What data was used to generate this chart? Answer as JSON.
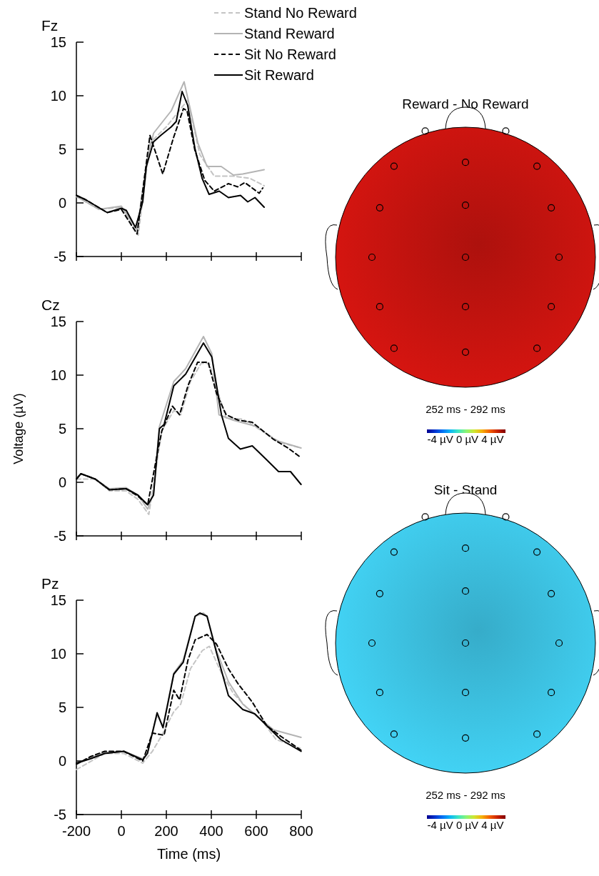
{
  "chart_data": [
    {
      "type": "line",
      "title": "Fz",
      "xlim": [
        -200,
        800
      ],
      "xticks": [
        -200,
        0,
        200,
        400,
        600,
        800
      ],
      "ylim": [
        -5,
        15
      ],
      "yticks": [
        -5,
        0,
        5,
        10,
        15
      ],
      "tick_labels": "y",
      "legend": "top right",
      "grid": false,
      "marker": "none",
      "series": [
        {
          "name": "Stand No Reward",
          "color": "#c4c4c4",
          "line_style": "dashed",
          "x": [
            -200,
            -100,
            0,
            75,
            127,
            200,
            295,
            349,
            413,
            498,
            571,
            635
          ],
          "values": [
            0.6,
            -0.6,
            -0.4,
            -3.0,
            5.6,
            7.1,
            9.6,
            4.5,
            2.5,
            2.5,
            2.3,
            1.6
          ]
        },
        {
          "name": "Stand Reward",
          "color": "#b4b4b4",
          "line_style": "solid",
          "x": [
            -200,
            -100,
            0,
            70,
            111,
            143,
            222,
            279,
            340,
            381,
            444,
            498,
            540,
            635
          ],
          "values": [
            0.6,
            -0.6,
            -0.3,
            -2.5,
            3.6,
            6.5,
            8.6,
            11.3,
            5.6,
            3.4,
            3.4,
            2.6,
            2.7,
            3.1
          ]
        },
        {
          "name": "Sit No Reward",
          "color": "#000000",
          "line_style": "dashed",
          "x": [
            -200,
            -159,
            -63,
            0,
            70,
            127,
            184,
            232,
            276,
            292,
            327,
            371,
            413,
            476,
            517,
            549,
            613,
            629
          ],
          "values": [
            0.7,
            0.3,
            -0.9,
            -0.6,
            -2.9,
            6.3,
            2.7,
            6.1,
            8.8,
            8.6,
            4.9,
            2.1,
            1.1,
            1.8,
            1.5,
            1.9,
            0.9,
            1.4
          ]
        },
        {
          "name": "Sit Reward",
          "color": "#000000",
          "line_style": "solid",
          "x": [
            -200,
            -159,
            -63,
            0,
            22,
            63,
            95,
            111,
            143,
            175,
            222,
            244,
            270,
            295,
            327,
            359,
            390,
            435,
            476,
            530,
            562,
            594,
            635
          ],
          "values": [
            0.7,
            0.3,
            -0.9,
            -0.5,
            -0.7,
            -2.3,
            0.1,
            3.4,
            5.7,
            6.3,
            7.1,
            7.6,
            10.4,
            9.1,
            5.1,
            2.3,
            0.8,
            1.1,
            0.5,
            0.7,
            0.1,
            0.5,
            -0.4
          ]
        }
      ]
    },
    {
      "type": "line",
      "title": "Cz",
      "ylabel": "Voltage (µV)",
      "xlim": [
        -200,
        800
      ],
      "xticks": [
        -200,
        0,
        200,
        400,
        600,
        800
      ],
      "ylim": [
        -5,
        15
      ],
      "yticks": [
        -5,
        0,
        5,
        10,
        15
      ],
      "tick_labels": "y",
      "legend": false,
      "grid": false,
      "marker": "none",
      "series": [
        {
          "color": "#c4c4c4",
          "line_style": "dashed",
          "x": [
            -200,
            -116,
            -53,
            21,
            74,
            122,
            180,
            233,
            264,
            307,
            355,
            391,
            423,
            466,
            540,
            624,
            709,
            799
          ],
          "values": [
            0.3,
            0.3,
            -0.8,
            -0.8,
            -1.6,
            -3.0,
            4.8,
            6.7,
            6.3,
            9.4,
            11.1,
            11.1,
            8.8,
            6.0,
            5.9,
            4.8,
            3.7,
            3.2
          ]
        },
        {
          "color": "#b4b4b4",
          "line_style": "solid",
          "x": [
            -200,
            -180,
            -116,
            -53,
            21,
            74,
            117,
            143,
            169,
            233,
            286,
            365,
            402,
            434,
            497,
            603,
            688,
            799
          ],
          "values": [
            0.3,
            0.8,
            0.3,
            -0.6,
            -0.5,
            -1.2,
            -2.5,
            -1.0,
            5.2,
            9.4,
            10.6,
            13.6,
            12.0,
            6.3,
            5.8,
            5.2,
            3.9,
            3.2
          ]
        },
        {
          "color": "#000000",
          "line_style": "dashed",
          "x": [
            -200,
            -180,
            -116,
            -53,
            21,
            74,
            117,
            159,
            180,
            227,
            259,
            296,
            339,
            386,
            423,
            466,
            519,
            582,
            677,
            741,
            799
          ],
          "values": [
            0.3,
            0.8,
            0.3,
            -0.7,
            -0.6,
            -1.3,
            -2.1,
            2.6,
            4.8,
            7.1,
            6.3,
            9.0,
            11.2,
            11.2,
            8.3,
            6.3,
            5.8,
            5.6,
            4.0,
            3.2,
            2.3
          ]
        },
        {
          "color": "#000000",
          "line_style": "solid",
          "x": [
            -200,
            -180,
            -116,
            -53,
            21,
            74,
            117,
            143,
            169,
            190,
            233,
            286,
            365,
            402,
            445,
            476,
            529,
            582,
            646,
            699,
            752,
            799
          ],
          "values": [
            0.3,
            0.8,
            0.3,
            -0.7,
            -0.6,
            -1.2,
            -2.1,
            -1.2,
            5.0,
            5.4,
            9.0,
            10.1,
            13.0,
            11.7,
            6.3,
            4.1,
            3.1,
            3.4,
            2.1,
            1.0,
            1.0,
            -0.2
          ]
        }
      ]
    },
    {
      "type": "line",
      "title": "Pz",
      "xlabel": "Time (ms)",
      "xlim": [
        -200,
        800
      ],
      "xticks": [
        -200,
        0,
        200,
        400,
        600,
        800
      ],
      "ylim": [
        -5,
        15
      ],
      "yticks": [
        -5,
        0,
        5,
        10,
        15
      ],
      "legend": false,
      "grid": false,
      "marker": "none",
      "series": [
        {
          "color": "#c4c4c4",
          "line_style": "dashed",
          "x": [
            -200,
            -74,
            11,
            95,
            138,
            180,
            233,
            264,
            307,
            360,
            391,
            445,
            498,
            561,
            624,
            688,
            794
          ],
          "values": [
            -0.8,
            0.7,
            0.7,
            -0.2,
            0.9,
            2.4,
            4.6,
            5.3,
            8.6,
            10.3,
            10.7,
            8.2,
            6.3,
            4.9,
            3.8,
            2.0,
            1.2
          ]
        },
        {
          "color": "#b4b4b4",
          "line_style": "solid",
          "x": [
            -200,
            -138,
            -74,
            11,
            95,
            116,
            159,
            185,
            233,
            275,
            328,
            365,
            381,
            423,
            476,
            540,
            677,
            799
          ],
          "values": [
            -0.3,
            0.3,
            0.8,
            0.9,
            0.2,
            0.8,
            4.3,
            3.2,
            8.2,
            9.4,
            13.5,
            13.8,
            13.5,
            10.3,
            7.4,
            5.3,
            2.9,
            2.2
          ]
        },
        {
          "color": "#000000",
          "line_style": "dashed",
          "x": [
            -200,
            -138,
            -74,
            11,
            95,
            138,
            190,
            233,
            259,
            296,
            328,
            381,
            423,
            476,
            519,
            582,
            646,
            709,
            799
          ],
          "values": [
            -0.3,
            0.4,
            0.9,
            0.9,
            0.0,
            2.6,
            2.4,
            6.6,
            5.7,
            9.4,
            11.3,
            11.8,
            10.9,
            8.6,
            7.2,
            5.5,
            3.3,
            2.3,
            1.0
          ]
        },
        {
          "color": "#000000",
          "line_style": "solid",
          "x": [
            -200,
            -138,
            -74,
            11,
            95,
            116,
            159,
            185,
            233,
            275,
            328,
            349,
            381,
            423,
            476,
            540,
            593,
            656,
            709,
            799
          ],
          "values": [
            -0.2,
            0.2,
            0.7,
            0.9,
            0.1,
            0.7,
            4.5,
            3.1,
            8.1,
            9.2,
            13.5,
            13.8,
            13.5,
            10.1,
            6.1,
            4.8,
            4.4,
            3.1,
            2.0,
            0.9
          ]
        }
      ]
    },
    {
      "type": "other",
      "title": "Reward - No Reward",
      "color": "#c8140f",
      "annotations": [
        "252 ms - 292 ms",
        "-4 µV 0 µV 4 µV"
      ]
    },
    {
      "type": "other",
      "title": "Sit - Stand",
      "color": "#3ec6e8",
      "annotations": [
        "252 ms - 292 ms",
        "-4 µV 0 µV 4 µV"
      ]
    }
  ]
}
